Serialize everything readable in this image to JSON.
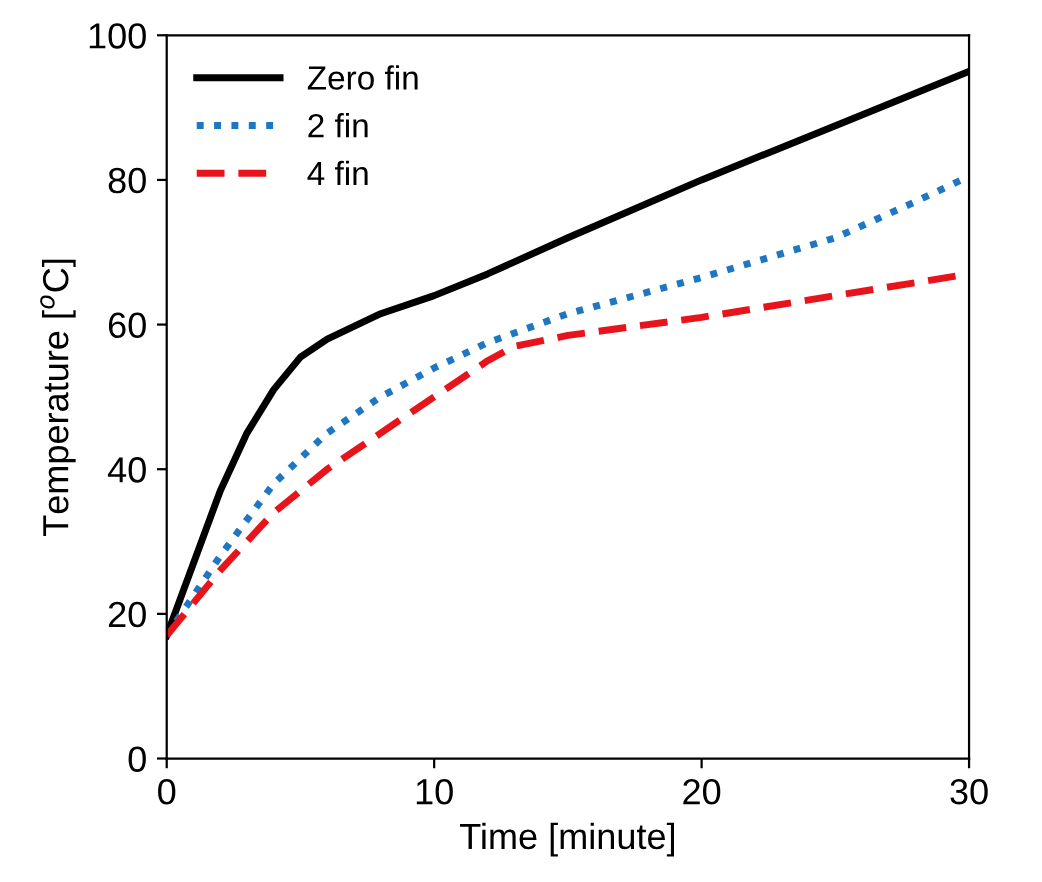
{
  "chart_data": {
    "type": "line",
    "xlabel": "Time [minute]",
    "ylabel": "Temperature [$^{o}$C]",
    "xlim": [
      0,
      30
    ],
    "ylim": [
      0,
      100
    ],
    "xticks": [
      0,
      10,
      20,
      30
    ],
    "yticks": [
      0,
      20,
      40,
      60,
      80,
      100
    ],
    "grid": false,
    "legend": "top left",
    "marker": "none",
    "series": [
      {
        "name": "Zero fin",
        "color": "#000000",
        "line_style": "solid",
        "x": [
          0,
          1,
          2,
          3,
          4,
          5,
          6,
          8,
          10,
          12,
          15,
          20,
          25,
          30
        ],
        "values": [
          17,
          27,
          37,
          45,
          51,
          55.5,
          58,
          61.5,
          64,
          67,
          72,
          80,
          87.5,
          95
        ]
      },
      {
        "name": "2 fin",
        "color": "#1f77c4",
        "line_style": "dotted",
        "x": [
          0,
          2,
          4,
          6,
          8,
          10,
          12,
          15,
          20,
          25,
          28,
          30
        ],
        "values": [
          17,
          28,
          38,
          45,
          50,
          54,
          57.5,
          61.5,
          66.5,
          72,
          77,
          80.5
        ]
      },
      {
        "name": "4 fin",
        "color": "#e8141b",
        "line_style": "dashed",
        "x": [
          0,
          2,
          4,
          6,
          8,
          10,
          12,
          13,
          15,
          20,
          25,
          30
        ],
        "values": [
          17,
          26,
          34,
          40,
          45,
          50,
          55,
          57,
          58.5,
          61,
          64,
          67
        ]
      }
    ]
  }
}
